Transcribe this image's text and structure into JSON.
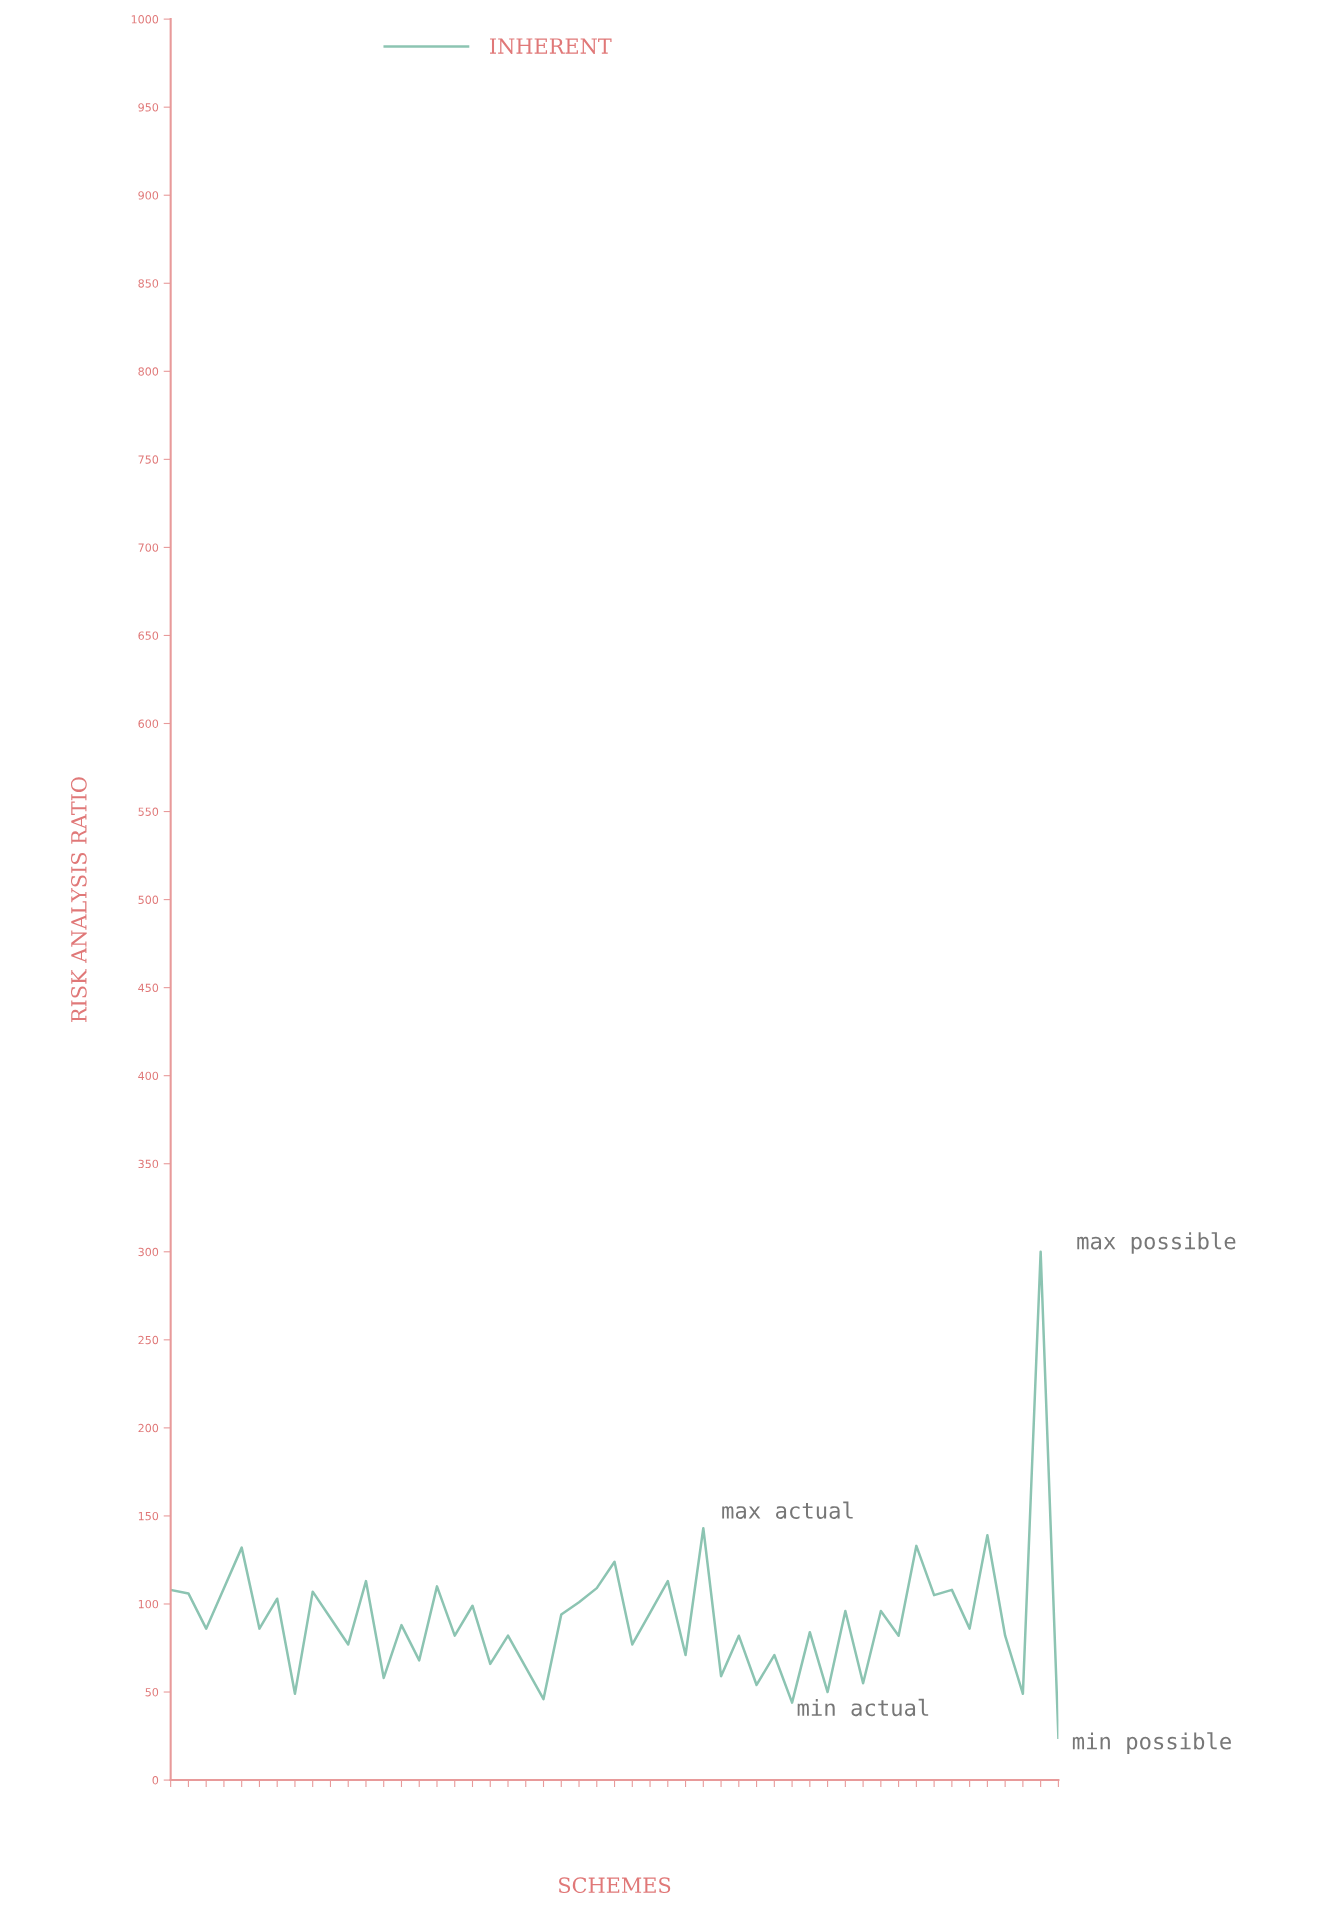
{
  "chart_data": {
    "type": "line",
    "xlabel": "SCHEMES",
    "ylabel": "RISK ANALYSIS RATIO",
    "categories": [
      null,
      null,
      null,
      null,
      null,
      null,
      null,
      null,
      null,
      null,
      null,
      null,
      null,
      null,
      null,
      null,
      null,
      null,
      null,
      null,
      null,
      null,
      null,
      null,
      null,
      null,
      null,
      null,
      null,
      null,
      null,
      null,
      null,
      null,
      null,
      null,
      null,
      null,
      null,
      null,
      null,
      null,
      null,
      null,
      null,
      null,
      null,
      null,
      null,
      null,
      null
    ],
    "series": [
      {
        "name": "INHERENT",
        "color": "#8cc4b2",
        "values": [
          108,
          106,
          86,
          109,
          132,
          86,
          103,
          49,
          107,
          92,
          77,
          113,
          58,
          88,
          68,
          110,
          82,
          99,
          66,
          82,
          64,
          46,
          94,
          101,
          109,
          124,
          77,
          95,
          113,
          71,
          143,
          59,
          82,
          54,
          71,
          44,
          84,
          50,
          96,
          55,
          96,
          82,
          133,
          105,
          108,
          86,
          139,
          82,
          49,
          300,
          24
        ]
      }
    ],
    "ylim": [
      0,
      1000
    ],
    "yticks": [
      0,
      50,
      100,
      150,
      200,
      250,
      300,
      350,
      400,
      450,
      500,
      550,
      600,
      650,
      700,
      750,
      800,
      850,
      900,
      950,
      1000
    ],
    "tick_labels": "y",
    "legend": "top left",
    "grid": false,
    "marker": "none",
    "line_style": "solid",
    "annotations": [
      "max actual",
      "min actual",
      "max possible",
      "min possible"
    ]
  }
}
